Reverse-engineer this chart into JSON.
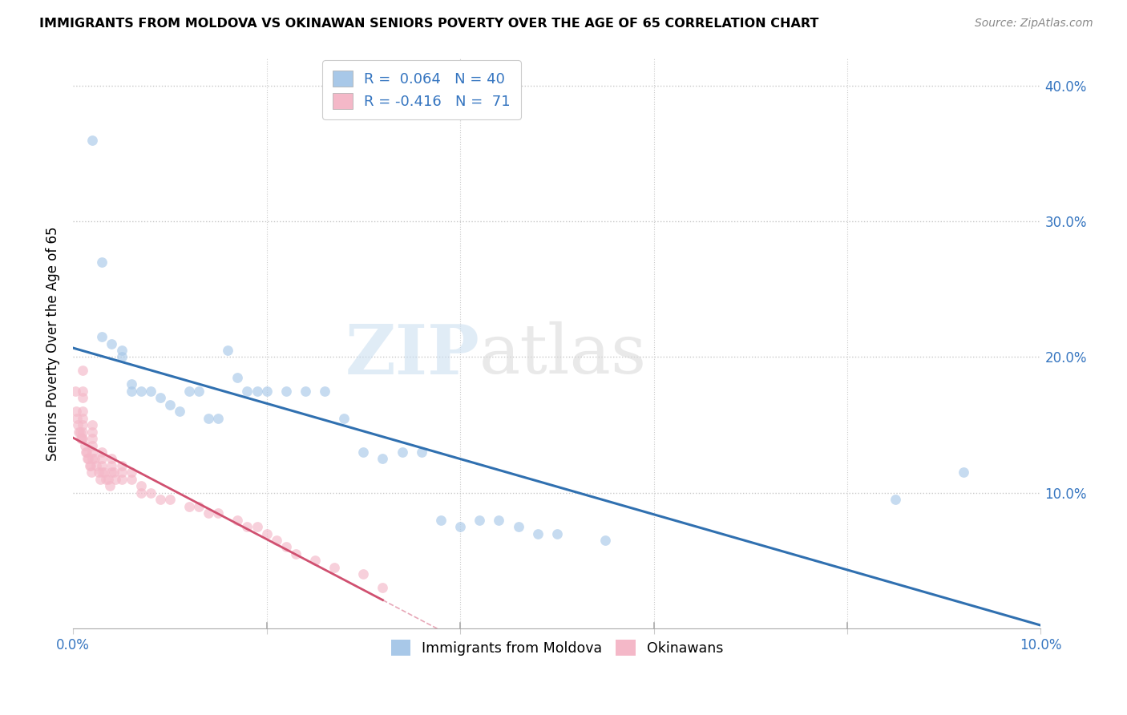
{
  "title": "IMMIGRANTS FROM MOLDOVA VS OKINAWAN SENIORS POVERTY OVER THE AGE OF 65 CORRELATION CHART",
  "source": "Source: ZipAtlas.com",
  "ylabel": "Seniors Poverty Over the Age of 65",
  "xlim": [
    0.0,
    0.1
  ],
  "ylim": [
    0.0,
    0.42
  ],
  "yticks": [
    0.0,
    0.1,
    0.2,
    0.3,
    0.4
  ],
  "ytick_labels_right": [
    "",
    "10.0%",
    "20.0%",
    "30.0%",
    "40.0%"
  ],
  "xticks": [
    0.0,
    0.02,
    0.04,
    0.06,
    0.08,
    0.1
  ],
  "xtick_labels": [
    "0.0%",
    "",
    "",
    "",
    "",
    "10.0%"
  ],
  "watermark_zip": "ZIP",
  "watermark_atlas": "atlas",
  "blue_color": "#a8c8e8",
  "pink_color": "#f4b8c8",
  "blue_line_color": "#3070b0",
  "pink_line_color": "#d05070",
  "scatter_alpha": 0.65,
  "marker_size": 85,
  "moldova_x": [
    0.002,
    0.003,
    0.003,
    0.004,
    0.005,
    0.005,
    0.006,
    0.006,
    0.007,
    0.008,
    0.009,
    0.01,
    0.011,
    0.012,
    0.013,
    0.014,
    0.015,
    0.016,
    0.017,
    0.018,
    0.019,
    0.02,
    0.022,
    0.024,
    0.026,
    0.028,
    0.03,
    0.032,
    0.034,
    0.036,
    0.038,
    0.04,
    0.042,
    0.044,
    0.046,
    0.048,
    0.05,
    0.055,
    0.085,
    0.092
  ],
  "moldova_y": [
    0.36,
    0.27,
    0.215,
    0.21,
    0.205,
    0.2,
    0.175,
    0.18,
    0.175,
    0.175,
    0.17,
    0.165,
    0.16,
    0.175,
    0.175,
    0.155,
    0.155,
    0.205,
    0.185,
    0.175,
    0.175,
    0.175,
    0.175,
    0.175,
    0.175,
    0.155,
    0.13,
    0.125,
    0.13,
    0.13,
    0.08,
    0.075,
    0.08,
    0.08,
    0.075,
    0.07,
    0.07,
    0.065,
    0.095,
    0.115
  ],
  "okinawa_x": [
    0.0002,
    0.0003,
    0.0004,
    0.0005,
    0.0006,
    0.0007,
    0.0008,
    0.0009,
    0.001,
    0.001,
    0.001,
    0.001,
    0.001,
    0.001,
    0.001,
    0.001,
    0.0012,
    0.0013,
    0.0014,
    0.0015,
    0.0016,
    0.0017,
    0.0018,
    0.0019,
    0.002,
    0.002,
    0.002,
    0.002,
    0.002,
    0.002,
    0.0022,
    0.0024,
    0.0026,
    0.0028,
    0.003,
    0.003,
    0.003,
    0.003,
    0.0032,
    0.0034,
    0.0036,
    0.0038,
    0.004,
    0.004,
    0.004,
    0.0042,
    0.0044,
    0.005,
    0.005,
    0.005,
    0.006,
    0.006,
    0.007,
    0.007,
    0.008,
    0.009,
    0.01,
    0.012,
    0.013,
    0.014,
    0.015,
    0.017,
    0.018,
    0.019,
    0.02,
    0.021,
    0.022,
    0.023,
    0.025,
    0.027,
    0.03,
    0.032
  ],
  "okinawa_y": [
    0.175,
    0.16,
    0.155,
    0.15,
    0.145,
    0.145,
    0.14,
    0.14,
    0.19,
    0.175,
    0.17,
    0.16,
    0.155,
    0.15,
    0.145,
    0.14,
    0.135,
    0.13,
    0.13,
    0.125,
    0.125,
    0.12,
    0.12,
    0.115,
    0.15,
    0.145,
    0.14,
    0.135,
    0.13,
    0.125,
    0.125,
    0.12,
    0.115,
    0.11,
    0.13,
    0.125,
    0.12,
    0.115,
    0.115,
    0.11,
    0.11,
    0.105,
    0.125,
    0.12,
    0.115,
    0.115,
    0.11,
    0.12,
    0.115,
    0.11,
    0.115,
    0.11,
    0.105,
    0.1,
    0.1,
    0.095,
    0.095,
    0.09,
    0.09,
    0.085,
    0.085,
    0.08,
    0.075,
    0.075,
    0.07,
    0.065,
    0.06,
    0.055,
    0.05,
    0.045,
    0.04,
    0.03
  ]
}
